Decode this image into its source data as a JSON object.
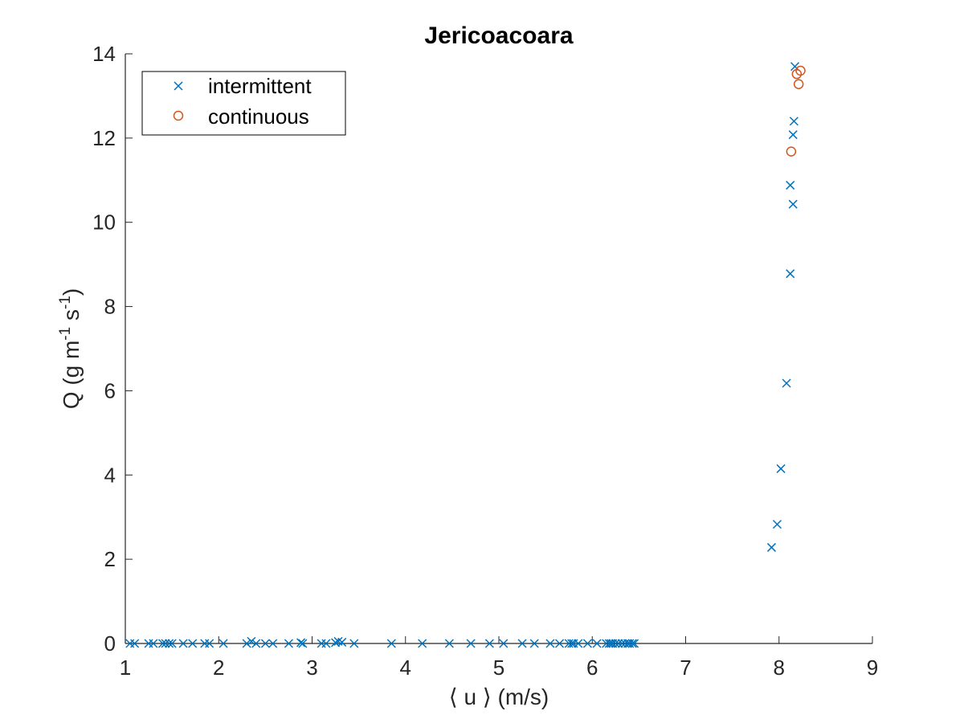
{
  "chart_data": {
    "type": "scatter",
    "title": "Jericoacoara",
    "xlabel": "⟨ u ⟩ (m/s)",
    "ylabel": {
      "q": "Q (g m",
      "exp1": "-1",
      "s": " s",
      "exp2": "-1",
      "close": ")"
    },
    "xlim": [
      1,
      9
    ],
    "ylim": [
      0,
      14
    ],
    "xticks": [
      "1",
      "2",
      "3",
      "4",
      "5",
      "6",
      "7",
      "8",
      "9"
    ],
    "yticks": [
      "0",
      "2",
      "4",
      "6",
      "8",
      "10",
      "12",
      "14"
    ],
    "grid": false,
    "legend_location": "top-left",
    "series": [
      {
        "name": "intermittent",
        "marker": "x",
        "color": "#0072BD",
        "points": [
          [
            1.05,
            0
          ],
          [
            1.1,
            0
          ],
          [
            1.25,
            0
          ],
          [
            1.3,
            0
          ],
          [
            1.4,
            0
          ],
          [
            1.43,
            0
          ],
          [
            1.47,
            0
          ],
          [
            1.5,
            0
          ],
          [
            1.62,
            0
          ],
          [
            1.72,
            0
          ],
          [
            1.85,
            0
          ],
          [
            1.9,
            0
          ],
          [
            2.05,
            0
          ],
          [
            2.3,
            0
          ],
          [
            2.35,
            0.05
          ],
          [
            2.4,
            0
          ],
          [
            2.5,
            0
          ],
          [
            2.58,
            0
          ],
          [
            2.75,
            0
          ],
          [
            2.88,
            0.02
          ],
          [
            2.9,
            0
          ],
          [
            3.1,
            0
          ],
          [
            3.15,
            0
          ],
          [
            3.25,
            0.02
          ],
          [
            3.28,
            0.05
          ],
          [
            3.32,
            0.03
          ],
          [
            3.45,
            0
          ],
          [
            3.85,
            0
          ],
          [
            4.18,
            0
          ],
          [
            4.47,
            0
          ],
          [
            4.7,
            0
          ],
          [
            4.9,
            0
          ],
          [
            5.05,
            0
          ],
          [
            5.25,
            0
          ],
          [
            5.38,
            0
          ],
          [
            5.55,
            0
          ],
          [
            5.65,
            0
          ],
          [
            5.75,
            0
          ],
          [
            5.78,
            0
          ],
          [
            5.8,
            0
          ],
          [
            5.85,
            0
          ],
          [
            5.95,
            0
          ],
          [
            6.05,
            0
          ],
          [
            6.15,
            0
          ],
          [
            6.18,
            0
          ],
          [
            6.2,
            0
          ],
          [
            6.22,
            0
          ],
          [
            6.25,
            0
          ],
          [
            6.28,
            0
          ],
          [
            6.32,
            0
          ],
          [
            6.35,
            0
          ],
          [
            6.38,
            0
          ],
          [
            6.4,
            0
          ],
          [
            6.43,
            0
          ],
          [
            6.45,
            0
          ],
          [
            7.92,
            2.28
          ],
          [
            7.98,
            2.83
          ],
          [
            8.02,
            4.15
          ],
          [
            8.08,
            6.18
          ],
          [
            8.12,
            8.78
          ],
          [
            8.12,
            10.88
          ],
          [
            8.15,
            10.43
          ],
          [
            8.15,
            12.08
          ],
          [
            8.16,
            12.4
          ],
          [
            8.17,
            13.7
          ]
        ]
      },
      {
        "name": "continuous",
        "marker": "o",
        "color": "#D95319",
        "points": [
          [
            8.13,
            11.68
          ],
          [
            8.19,
            13.52
          ],
          [
            8.21,
            13.28
          ],
          [
            8.23,
            13.6
          ]
        ]
      }
    ]
  }
}
